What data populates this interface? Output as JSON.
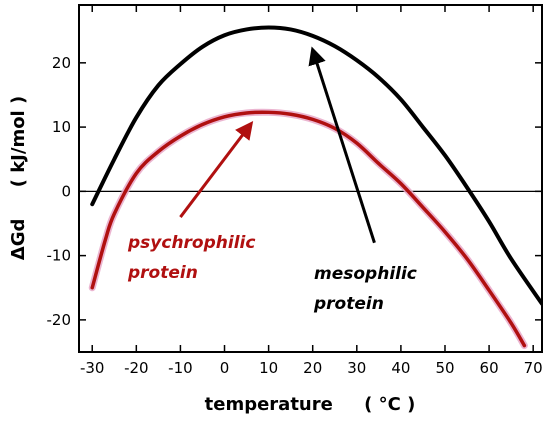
{
  "chart_data": {
    "type": "line",
    "title": "",
    "xlabel": "temperature     ( °C )",
    "ylabel": "ΔGd     ( kJ/mol )",
    "xlim": [
      -33,
      72
    ],
    "ylim": [
      -25,
      29
    ],
    "x_ticks": [
      -30,
      -20,
      -10,
      0,
      10,
      20,
      30,
      40,
      50,
      60,
      70
    ],
    "y_ticks": [
      -20,
      -10,
      0,
      10,
      20
    ],
    "x_tick_labels": [
      "-30",
      "-20",
      "-10",
      "0",
      "10",
      "20",
      "30",
      "40",
      "50",
      "60",
      "70"
    ],
    "y_tick_labels": [
      "-20",
      "-10",
      "0",
      "10",
      "20"
    ],
    "zero_line": true,
    "grid": false,
    "series": [
      {
        "color": "#000000",
        "x": [
          -30,
          -25,
          -20,
          -15,
          -10,
          -5,
          0,
          5,
          10,
          15,
          20,
          25,
          30,
          35,
          40,
          45,
          50,
          55,
          60,
          65,
          72
        ],
        "y": [
          -2,
          5,
          11.5,
          16.5,
          19.8,
          22.5,
          24.3,
          25.2,
          25.5,
          25.2,
          24.2,
          22.6,
          20.4,
          17.7,
          14.3,
          10,
          5.6,
          0.6,
          -4.7,
          -10.5,
          -17.5
        ]
      },
      {
        "color": "#b01010",
        "x": [
          -30,
          -27,
          -25,
          -20,
          -15,
          -10,
          -5,
          0,
          5,
          10,
          15,
          20,
          25,
          30,
          35,
          40,
          45,
          50,
          55,
          60,
          65,
          68
        ],
        "y": [
          -15,
          -7.5,
          -3.5,
          2.8,
          6.2,
          8.6,
          10.4,
          11.6,
          12.2,
          12.3,
          12,
          11.2,
          9.8,
          7.5,
          4.3,
          1.2,
          -2.5,
          -6.3,
          -10.5,
          -15.4,
          -20.5,
          -24
        ]
      }
    ],
    "annotations": [
      {
        "text": [
          "psychrophilic",
          "protein"
        ],
        "color": "#b01010",
        "arrow_from": [
          -10,
          -4
        ],
        "arrow_to": [
          6,
          10.5
        ]
      },
      {
        "text": [
          "mesophilic",
          "protein"
        ],
        "color": "#000000",
        "arrow_from": [
          34,
          -8
        ],
        "arrow_to": [
          20,
          22
        ]
      }
    ]
  }
}
